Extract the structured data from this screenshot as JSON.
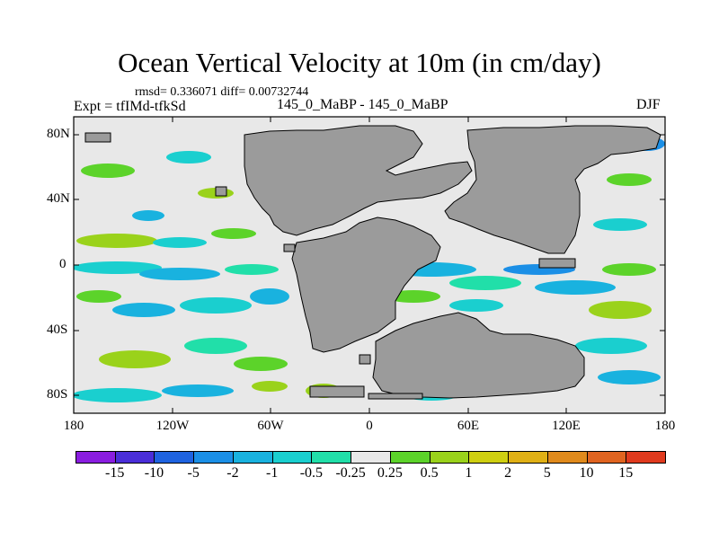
{
  "title": "Ocean Vertical Velocity at 10m (in cm/day)",
  "stats": "rmsd= 0.336071 diff= 0.00732744",
  "expt": "Expt = tfIMd-tfkSd",
  "runs": "145_0_MaBP - 145_0_MaBP",
  "season": "DJF",
  "lat_labels": [
    "80N",
    "40N",
    "0",
    "40S",
    "80S"
  ],
  "lon_labels": [
    "180",
    "120W",
    "60W",
    "0",
    "60E",
    "120E",
    "180"
  ],
  "colorbar": {
    "labels": [
      "-15",
      "-10",
      "-5",
      "-2",
      "-1",
      "-0.5",
      "-0.25",
      "0.25",
      "0.5",
      "1",
      "2",
      "5",
      "10",
      "15"
    ],
    "colors": [
      "#8a1de0",
      "#4a2ed8",
      "#1f63e0",
      "#1b8fe6",
      "#19b2df",
      "#1acfcf",
      "#21dfa9",
      "#e8e8e8",
      "#5cd32a",
      "#9ad21b",
      "#cfcf11",
      "#e0b015",
      "#e08a1c",
      "#e06420",
      "#e03a1e"
    ]
  },
  "colors": {
    "land": "#9b9b9b",
    "background_field": "#e8e8e8"
  }
}
